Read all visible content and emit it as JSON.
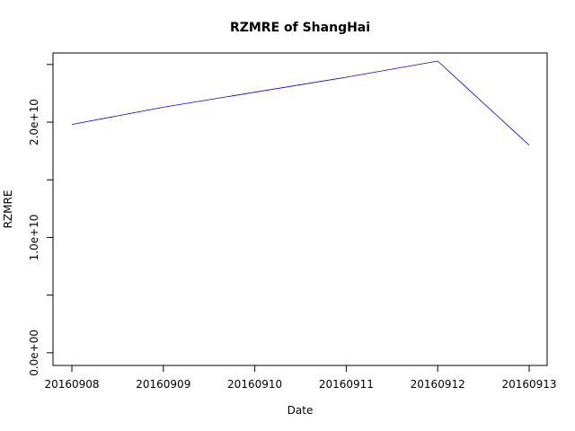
{
  "chart_data": {
    "type": "line",
    "title": "RZMRE of ShangHai",
    "xlabel": "Date",
    "ylabel": "RZMRE",
    "x_ticks": [
      "20160908",
      "20160909",
      "20160910",
      "20160911",
      "20160912",
      "20160913"
    ],
    "y_ticks": [
      0,
      5000000000,
      10000000000,
      15000000000,
      20000000000,
      25000000000
    ],
    "y_tick_labels": [
      "0.0e+00",
      "",
      "1.0e+10",
      "",
      "2.0e+10",
      ""
    ],
    "ylim": [
      -1100000000,
      26000000000
    ],
    "grid": false,
    "series": [
      {
        "color": "#0000ff",
        "x": [
          "20160908",
          "20160909",
          "20160910",
          "20160911",
          "20160912",
          "20160913"
        ],
        "values": [
          19800000000,
          21300000000,
          22600000000,
          23900000000,
          25300000000,
          18000000000
        ]
      }
    ]
  }
}
